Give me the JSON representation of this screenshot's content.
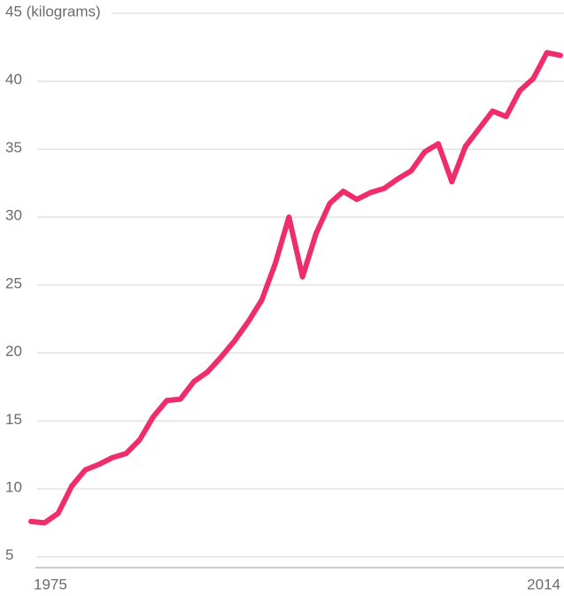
{
  "chart_data": {
    "type": "line",
    "x": [
      1975,
      1976,
      1977,
      1978,
      1979,
      1980,
      1981,
      1982,
      1983,
      1984,
      1985,
      1986,
      1987,
      1988,
      1989,
      1990,
      1991,
      1992,
      1993,
      1994,
      1995,
      1996,
      1997,
      1998,
      1999,
      2000,
      2001,
      2002,
      2003,
      2004,
      2005,
      2006,
      2007,
      2008,
      2009,
      2010,
      2011,
      2012,
      2013,
      2014
    ],
    "series": [
      {
        "color": "#ef2d6a",
        "values": [
          7.6,
          7.5,
          8.2,
          10.2,
          11.4,
          11.8,
          12.3,
          12.6,
          13.6,
          15.3,
          16.5,
          16.6,
          17.9,
          18.6,
          19.7,
          20.9,
          22.3,
          23.9,
          26.6,
          30.0,
          25.6,
          28.8,
          31.0,
          31.9,
          31.3,
          31.8,
          32.1,
          32.8,
          33.4,
          34.8,
          35.4,
          32.6,
          35.2,
          36.5,
          37.8,
          37.4,
          39.3,
          40.2,
          42.1,
          41.9
        ]
      }
    ],
    "xlim": [
      1975,
      2014
    ],
    "xticks": [
      1975,
      2014
    ],
    "ylim": [
      4.2,
      45
    ],
    "yticks": [
      5,
      10,
      15,
      20,
      25,
      30,
      35,
      40,
      {
        "value": 45,
        "label": "45 (kilograms)"
      }
    ],
    "grid": true
  }
}
